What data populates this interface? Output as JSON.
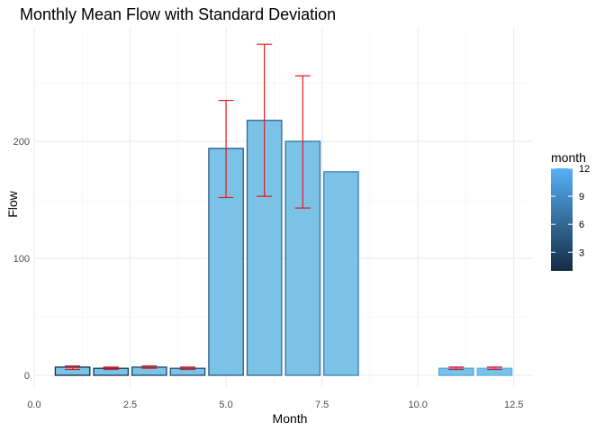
{
  "chart_data": {
    "type": "bar",
    "title": "Monthly Mean Flow with Standard Deviation",
    "xlabel": "Month",
    "ylabel": "Flow",
    "xlim": [
      0,
      13
    ],
    "ylim": [
      -10,
      297
    ],
    "x_ticks": [
      0,
      2.5,
      5,
      7.5,
      10,
      12.5
    ],
    "x_tick_labels": [
      "0.0",
      "2.5",
      "5.0",
      "7.5",
      "10.0",
      "12.5"
    ],
    "y_ticks": [
      0,
      100,
      200
    ],
    "y_tick_labels": [
      "0",
      "100",
      "200"
    ],
    "grid": true,
    "bars": [
      {
        "month": 1,
        "mean": 7,
        "sd_low": 5,
        "sd_high": 8
      },
      {
        "month": 2,
        "mean": 6,
        "sd_low": 5,
        "sd_high": 7
      },
      {
        "month": 3,
        "mean": 7,
        "sd_low": 6,
        "sd_high": 8
      },
      {
        "month": 4,
        "mean": 6,
        "sd_low": 5,
        "sd_high": 7
      },
      {
        "month": 5,
        "mean": 194,
        "sd_low": 152,
        "sd_high": 235
      },
      {
        "month": 6,
        "mean": 218,
        "sd_low": 153,
        "sd_high": 283
      },
      {
        "month": 7,
        "mean": 200,
        "sd_low": 143,
        "sd_high": 256
      },
      {
        "month": 8,
        "mean": 174,
        "sd_low": null,
        "sd_high": null
      },
      {
        "month": 11,
        "mean": 6,
        "sd_low": 5,
        "sd_high": 7
      },
      {
        "month": 12,
        "mean": 6,
        "sd_low": 5,
        "sd_high": 7
      }
    ],
    "bar_fill": "#7ac3e6",
    "error_bar_color": "#e8161c",
    "legend": {
      "title": "month",
      "position": "right",
      "ticks": [
        3,
        6,
        9,
        12
      ],
      "tick_labels": [
        "3",
        "6",
        "9",
        "12"
      ],
      "range": [
        1,
        12
      ],
      "low_color": "#132b43",
      "high_color": "#56b1f7"
    }
  }
}
